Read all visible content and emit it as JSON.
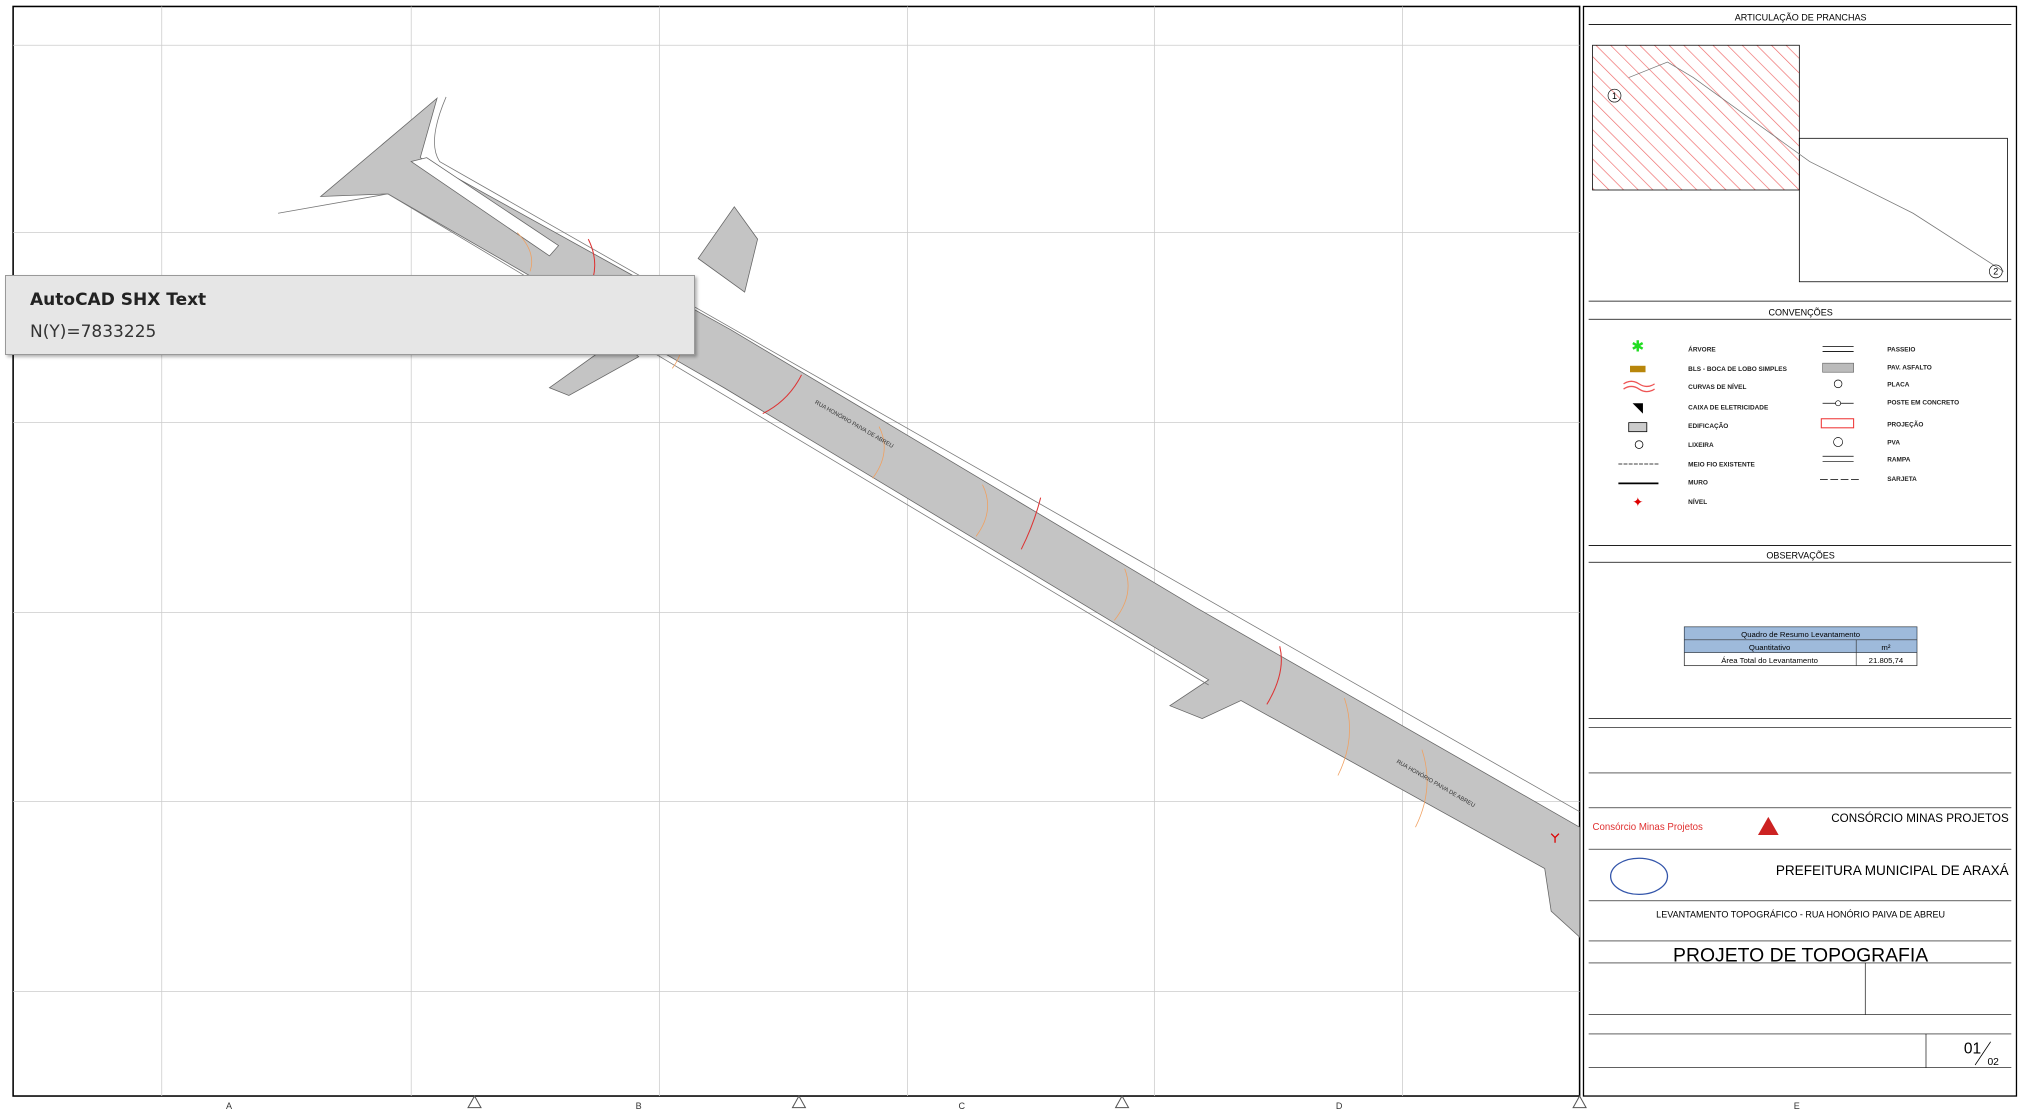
{
  "tooltip": {
    "title": "AutoCAD SHX Text",
    "value": "N(Y)=7833225"
  },
  "grid_columns": [
    "A",
    "B",
    "C",
    "D",
    "E"
  ],
  "map": {
    "main_street": "RUA HONÓRIO PAIVA DE ABREU",
    "main_street_2": "RUA HONÓRIO PAIVA DE ABREU"
  },
  "title_block": {
    "articulation": {
      "title": "ARTICULAÇÃO DE PRANCHAS",
      "sheets": [
        "1",
        "2"
      ]
    },
    "conventions": {
      "title": "CONVENÇÕES",
      "left": [
        "ÁRVORE",
        "BLS - BOCA DE LOBO SIMPLES",
        "CURVAS DE NÍVEL",
        "CAIXA DE ELETRICIDADE",
        "EDIFICAÇÃO",
        "LIXEIRA",
        "MEIO FIO EXISTENTE",
        "MURO",
        "NÍVEL"
      ],
      "right": [
        "PASSEIO",
        "PAV. ASFALTO",
        "PLACA",
        "POSTE EM CONCRETO",
        "PROJEÇÃO",
        "PVA",
        "RAMPA",
        "SARJETA"
      ]
    },
    "observations": {
      "title": "OBSERVAÇÕES"
    },
    "summary": {
      "title": "Quadro de Resumo Levantamento",
      "header": [
        "Quantitativo",
        "m²"
      ],
      "row": [
        "Área Total do Levantamento",
        "21.805,74"
      ]
    },
    "company_left": "Consórcio Minas Projetos",
    "company": "CONSÓRCIO MINAS PROJETOS",
    "client": "PREFEITURA MUNICIPAL DE ARAXÁ",
    "subject": "LEVANTAMENTO TOPOGRÁFICO - RUA HONÓRIO PAIVA DE ABREU",
    "project": "PROJETO DE TOPOGRAFIA",
    "sheet": {
      "number": "01",
      "total": "02"
    }
  }
}
